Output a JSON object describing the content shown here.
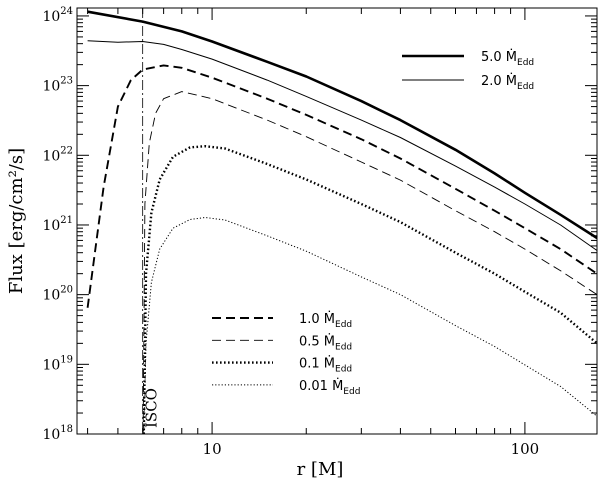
{
  "chart_data": {
    "type": "line",
    "xlabel": "r [M]",
    "ylabel": "Flux [erg/cm²/s]",
    "xscale": "log",
    "yscale": "log",
    "xlim": [
      3.7,
      170
    ],
    "ylim": [
      1e+18,
      1.3e+24
    ],
    "x_ticks": [
      {
        "value": 10,
        "label": "10"
      },
      {
        "value": 100,
        "label": "100"
      }
    ],
    "y_ticks": [
      {
        "value": 1e+18,
        "base": "10",
        "exp": "18"
      },
      {
        "value": 1e+19,
        "base": "10",
        "exp": "19"
      },
      {
        "value": 1e+20,
        "base": "10",
        "exp": "20"
      },
      {
        "value": 1e+21,
        "base": "10",
        "exp": "21"
      },
      {
        "value": 1e+22,
        "base": "10",
        "exp": "22"
      },
      {
        "value": 1e+23,
        "base": "10",
        "exp": "23"
      },
      {
        "value": 1e+24,
        "base": "10",
        "exp": "24"
      }
    ],
    "annotation": {
      "text": "ISCO",
      "x": 6.0
    },
    "series": [
      {
        "name": "5.0",
        "legend_value": "5.0",
        "style": "thick-solid",
        "x": [
          4,
          6,
          8,
          10,
          15,
          20,
          30,
          40,
          60,
          80,
          100,
          130,
          170
        ],
        "y": [
          1.15e+24,
          8.3e+23,
          6e+23,
          4.3e+23,
          2.2e+23,
          1.35e+23,
          6e+22,
          3.2e+22,
          1.2e+22,
          5.5e+21,
          2.9e+21,
          1.4e+21,
          6.5e+20
        ]
      },
      {
        "name": "2.0",
        "legend_value": "2.0",
        "style": "thin-solid",
        "x": [
          4,
          5,
          6,
          7,
          8,
          10,
          15,
          20,
          30,
          40,
          60,
          80,
          100,
          130,
          170
        ],
        "y": [
          4.4e+23,
          4.2e+23,
          4.3e+23,
          3.9e+23,
          3.3e+23,
          2.4e+23,
          1.2e+23,
          7e+22,
          3.2e+22,
          1.8e+22,
          7e+21,
          3.5e+21,
          2e+21,
          1e+21,
          4.3e+20
        ]
      },
      {
        "name": "1.0",
        "legend_value": "1.0",
        "style": "thick-dashed",
        "x": [
          4,
          4.5,
          5,
          5.5,
          6,
          7,
          8,
          10,
          15,
          20,
          30,
          40,
          60,
          80,
          100,
          130,
          170
        ],
        "y": [
          6.5e+19,
          3.5e+21,
          5e+22,
          1.2e+23,
          1.7e+23,
          1.95e+23,
          1.8e+23,
          1.3e+23,
          6.5e+22,
          3.8e+22,
          1.7e+22,
          9e+21,
          3.3e+21,
          1.6e+21,
          9e+20,
          4.5e+20,
          2e+20
        ]
      },
      {
        "name": "0.5",
        "legend_value": "0.5",
        "style": "thin-dashed",
        "x": [
          6.02,
          6.1,
          6.3,
          6.6,
          7,
          8,
          10,
          15,
          20,
          30,
          40,
          60,
          80,
          100,
          130,
          170
        ],
        "y": [
          1e+18,
          2e+21,
          1.5e+22,
          4e+22,
          6.5e+22,
          8.2e+22,
          6.5e+22,
          3.2e+22,
          1.85e+22,
          8e+21,
          4.4e+21,
          1.6e+21,
          8e+20,
          4.5e+20,
          2.2e+20,
          1e+20
        ]
      },
      {
        "name": "0.1",
        "legend_value": "0.1",
        "style": "thick-dotted",
        "x": [
          6.05,
          6.15,
          6.4,
          6.8,
          7.5,
          8.5,
          9.5,
          11,
          15,
          20,
          30,
          40,
          60,
          80,
          100,
          130,
          170
        ],
        "y": [
          1e+18,
          2e+20,
          1.5e+21,
          4.5e+21,
          9.5e+21,
          1.3e+22,
          1.35e+22,
          1.25e+22,
          7.5e+21,
          4.5e+21,
          2e+21,
          1.1e+21,
          4e+20,
          2e+20,
          1.1e+20,
          5.5e+19,
          2e+19
        ]
      },
      {
        "name": "0.01",
        "legend_value": "0.01",
        "style": "thin-dotted",
        "x": [
          6.05,
          6.15,
          6.4,
          6.8,
          7.5,
          8.5,
          9.5,
          11,
          15,
          20,
          30,
          40,
          60,
          80,
          100,
          130,
          170
        ],
        "y": [
          1e+18,
          2e+19,
          1.5e+20,
          4.5e+20,
          9e+20,
          1.2e+21,
          1.28e+21,
          1.18e+21,
          7e+20,
          4.2e+20,
          1.8e+20,
          1e+20,
          3.6e+19,
          1.8e+19,
          9.8e+18,
          4.8e+18,
          1.8e+18
        ]
      }
    ],
    "legend_unit": "Ṁ",
    "legend_unit_sub": "Edd",
    "legend_groups": [
      {
        "placement": "top-right",
        "series": [
          "5.0",
          "2.0"
        ]
      },
      {
        "placement": "bottom-center",
        "series": [
          "1.0",
          "0.5",
          "0.1",
          "0.01"
        ]
      }
    ]
  }
}
